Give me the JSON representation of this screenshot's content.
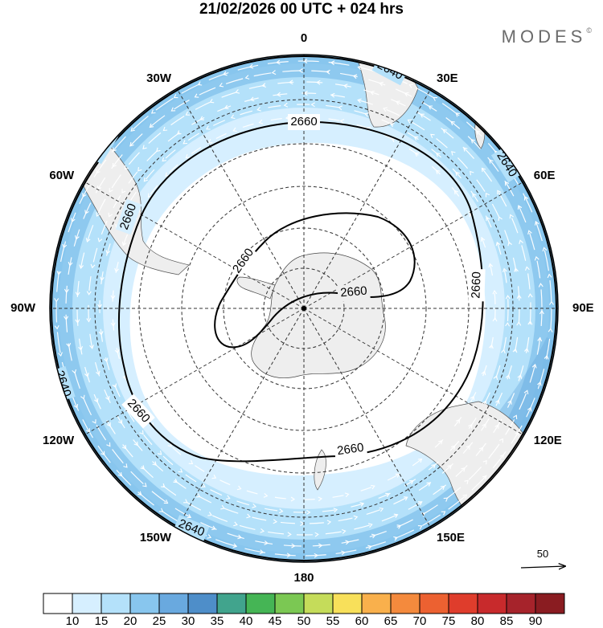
{
  "header": {
    "title": "21/02/2026  00 UTC  + 024 hrs",
    "brand": "MODES",
    "brand_mark": "©"
  },
  "map": {
    "projection": "south-polar-stereographic",
    "longitude_labels": [
      {
        "lon": 0,
        "label": "0"
      },
      {
        "lon": 30,
        "label": "30E"
      },
      {
        "lon": 60,
        "label": "60E"
      },
      {
        "lon": 90,
        "label": "90E"
      },
      {
        "lon": 120,
        "label": "120E"
      },
      {
        "lon": 150,
        "label": "150E"
      },
      {
        "lon": 180,
        "label": "180"
      },
      {
        "lon": -150,
        "label": "150W"
      },
      {
        "lon": -120,
        "label": "120W"
      },
      {
        "lon": -90,
        "label": "90W"
      },
      {
        "lon": -60,
        "label": "60W"
      },
      {
        "lon": -30,
        "label": "30W"
      }
    ],
    "latitude_circles": [
      -80,
      -70,
      -60,
      -50,
      -40,
      -30
    ],
    "contours": [
      {
        "value": "2660",
        "ring": "inner"
      },
      {
        "value": "2660",
        "ring": "outer"
      },
      {
        "value": "2640",
        "ring": "edge"
      }
    ],
    "contour_labels": [
      "2640",
      "2640",
      "2640",
      "2640",
      "2640",
      "2660",
      "2660",
      "2660",
      "2660",
      "2660",
      "2660",
      "2660"
    ],
    "wind_reference": {
      "label": "50"
    },
    "colors": {
      "land": "#eeeeee",
      "contour": "#000000",
      "streamline": "#ffffff"
    }
  },
  "colorbar": {
    "labels": [
      "10",
      "15",
      "20",
      "25",
      "30",
      "35",
      "40",
      "45",
      "50",
      "55",
      "60",
      "65",
      "70",
      "75",
      "80",
      "85",
      "90"
    ],
    "colors": [
      "#ffffff",
      "#d6efff",
      "#b4e1fa",
      "#88c6ee",
      "#69a9df",
      "#4e8ec9",
      "#41a48d",
      "#45b555",
      "#7bc853",
      "#c5dc5a",
      "#f8e05a",
      "#f9b04c",
      "#f48a3d",
      "#ec6131",
      "#df3d2c",
      "#c82a2c",
      "#a6232b",
      "#8a1c21"
    ]
  }
}
